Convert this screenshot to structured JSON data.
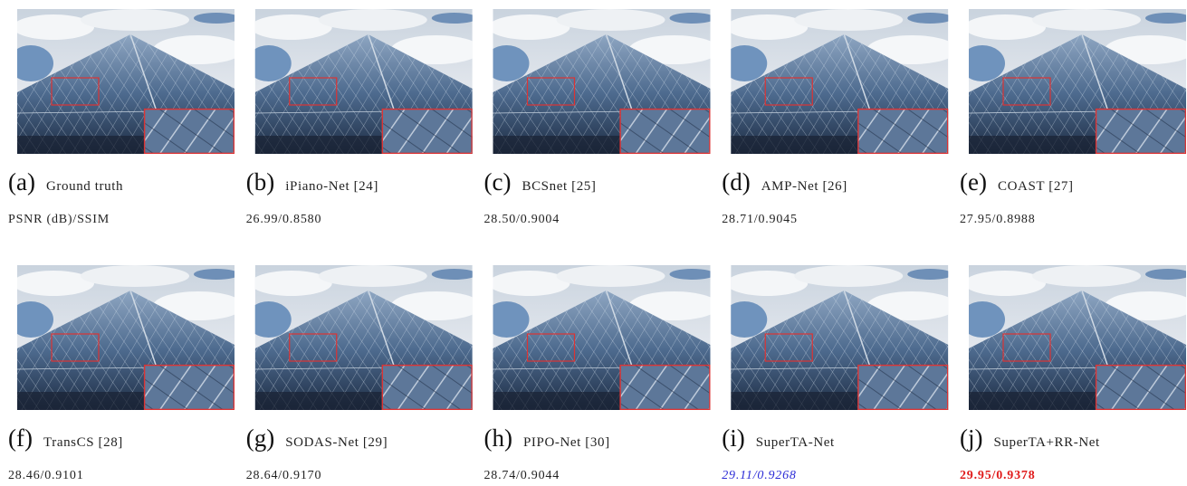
{
  "panels": [
    {
      "letter": "(a)",
      "name": "Ground truth",
      "metric": "PSNR (dB)/SSIM"
    },
    {
      "letter": "(b)",
      "name": "iPiano-Net [24]",
      "metric": "26.99/0.8580"
    },
    {
      "letter": "(c)",
      "name": "BCSnet [25]",
      "metric": "28.50/0.9004"
    },
    {
      "letter": "(d)",
      "name": "AMP-Net [26]",
      "metric": "28.71/0.9045"
    },
    {
      "letter": "(e)",
      "name": "COAST [27]",
      "metric": "27.95/0.8988"
    },
    {
      "letter": "(f)",
      "name": "TransCS [28]",
      "metric": "28.46/0.9101"
    },
    {
      "letter": "(g)",
      "name": "SODAS-Net [29]",
      "metric": "28.64/0.9170"
    },
    {
      "letter": "(h)",
      "name": "PIPO-Net [30]",
      "metric": "28.74/0.9044"
    },
    {
      "letter": "(i)",
      "name": "SuperTA-Net",
      "metric": "29.11/0.9268"
    },
    {
      "letter": "(j)",
      "name": "SuperTA+RR-Net",
      "metric": "29.95/0.9378"
    }
  ]
}
